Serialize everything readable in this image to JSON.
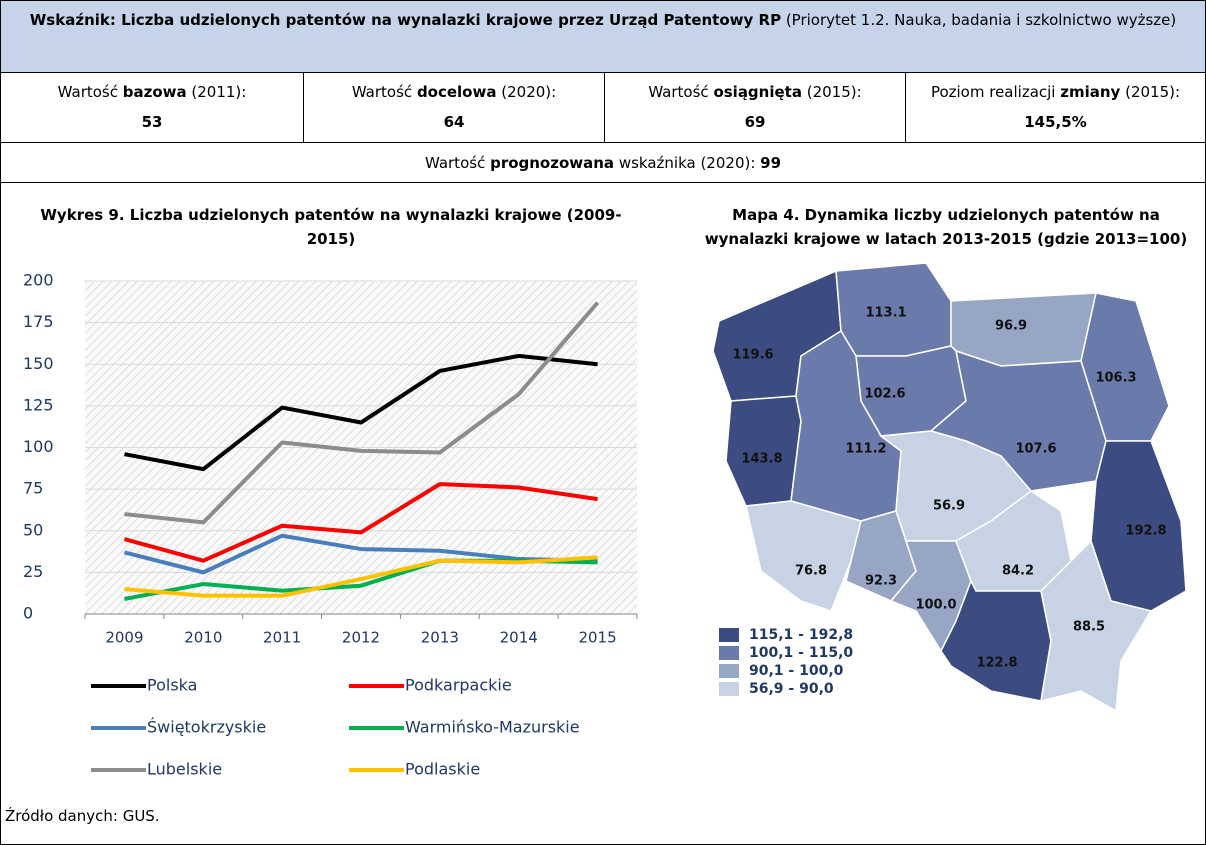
{
  "header": {
    "title_bold": "Wskaźnik: Liczba udzielonych patentów na wynalazki krajowe przez Urząd Patentowy RP",
    "title_rest": " (Priorytet 1.2. Nauka, badania i szkolnictwo wyższe)"
  },
  "indicators": [
    {
      "pre": "Wartość ",
      "bold": "bazowa",
      "post": " (2011):",
      "value": "53"
    },
    {
      "pre": "Wartość ",
      "bold": "docelowa",
      "post": " (2020):",
      "value": "64"
    },
    {
      "pre": "Wartość ",
      "bold": "osiągnięta",
      "post": " (2015):",
      "value": "69"
    },
    {
      "pre": "Poziom realizacji ",
      "bold": "zmiany",
      "post": " (2015):",
      "value": "145,5%"
    }
  ],
  "forecast": {
    "pre": "Wartość ",
    "bold": "prognozowana",
    "post": " wskaźnika (2020): ",
    "value": "99"
  },
  "chart_data": {
    "type": "line",
    "title": "Wykres 9. Liczba udzielonych patentów na wynalazki krajowe (2009-2015)",
    "categories": [
      "2009",
      "2010",
      "2011",
      "2012",
      "2013",
      "2014",
      "2015"
    ],
    "series": [
      {
        "name": "Polska",
        "color": "#000000",
        "values": [
          96,
          87,
          124,
          115,
          146,
          155,
          150
        ]
      },
      {
        "name": "Podkarpackie",
        "color": "#ff0000",
        "values": [
          45,
          32,
          53,
          49,
          78,
          76,
          69
        ]
      },
      {
        "name": "Świętokrzyskie",
        "color": "#4a7ebb",
        "values": [
          37,
          25,
          47,
          39,
          38,
          33,
          32
        ]
      },
      {
        "name": "Warmińsko-Mazurskie",
        "color": "#00b050",
        "values": [
          9,
          18,
          14,
          17,
          32,
          32,
          31
        ]
      },
      {
        "name": "Lubelskie",
        "color": "#8c8c8c",
        "values": [
          60,
          55,
          103,
          98,
          97,
          132,
          187
        ]
      },
      {
        "name": "Podlaskie",
        "color": "#ffc000",
        "values": [
          15,
          11,
          11,
          21,
          32,
          31,
          34
        ]
      }
    ],
    "ylim": [
      0,
      200
    ],
    "yticks": [
      0,
      25,
      50,
      75,
      100,
      125,
      150,
      175,
      200
    ],
    "grid": true
  },
  "map": {
    "title": "Mapa 4. Dynamika liczby udzielonych patentów na wynalazki krajowe w latach 2013-2015 (gdzie 2013=100)",
    "regions": [
      {
        "label": "119.6",
        "color": "#3c4c80"
      },
      {
        "label": "113.1",
        "color": "#6a7aab"
      },
      {
        "label": "96.9",
        "color": "#98a6c6"
      },
      {
        "label": "106.3",
        "color": "#6a7aab"
      },
      {
        "label": "102.6",
        "color": "#6a7aab"
      },
      {
        "label": "107.6",
        "color": "#6a7aab"
      },
      {
        "label": "143.8",
        "color": "#3c4c80"
      },
      {
        "label": "111.2",
        "color": "#6a7aab"
      },
      {
        "label": "56.9",
        "color": "#c8d2e5"
      },
      {
        "label": "192.8",
        "color": "#3c4c80"
      },
      {
        "label": "76.8",
        "color": "#c8d2e5"
      },
      {
        "label": "92.3",
        "color": "#98a6c6"
      },
      {
        "label": "100.0",
        "color": "#98a6c6"
      },
      {
        "label": "84.2",
        "color": "#c8d2e5"
      },
      {
        "label": "122.8",
        "color": "#3c4c80"
      },
      {
        "label": "88.5",
        "color": "#c8d2e5"
      }
    ],
    "legend": [
      {
        "label": "115,1 - 192,8",
        "color": "#3c4c80"
      },
      {
        "label": "100,1 - 115,0",
        "color": "#6a7aab"
      },
      {
        "label": "90,1 - 100,0",
        "color": "#98a6c6"
      },
      {
        "label": "56,9 - 90,0",
        "color": "#c8d2e5"
      }
    ]
  },
  "source": "Źródło danych: GUS."
}
